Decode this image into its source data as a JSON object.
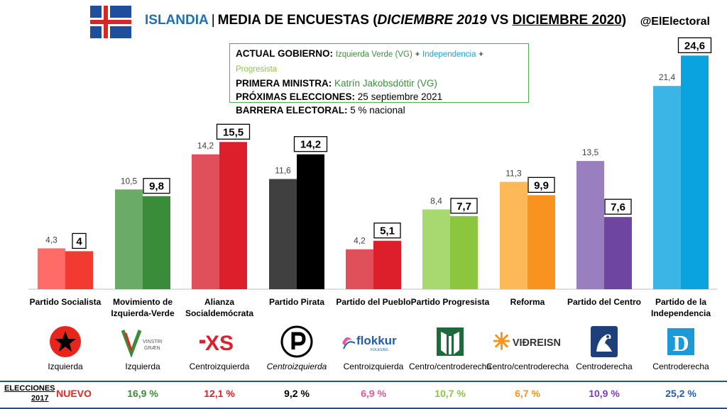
{
  "header": {
    "country": "ISLANDIA",
    "separator": "|",
    "title_main": "MEDIA DE ENCUESTAS (",
    "title_old": "DICIEMBRE 2019",
    "title_vs": " VS ",
    "title_new": "DICIEMBRE 2020",
    "title_close": ")",
    "handle": "@ElElectoral"
  },
  "info": {
    "gov_label": "ACTUAL GOBIERNO:",
    "gov_p1": "Izquierda Verde (VG)",
    "plus": "+",
    "gov_p2": "Independencia",
    "gov_p3": "Progresista",
    "pm_label": "PRIMERA MINISTRA:",
    "pm_value": "Katrín Jakobsdóttir (VG)",
    "next_label": "PRÓXIMAS ELECCIONES:",
    "next_value": "25 septiembre 2021",
    "threshold_label": "BARRERA ELECTORAL:",
    "threshold_value": "5 % nacional"
  },
  "chart_data": {
    "type": "bar",
    "categories": [
      "Partido Socialista",
      "Movimiento de Izquierda-Verde",
      "Alianza Socialdemócrata",
      "Partido Pirata",
      "Partido del Pueblo",
      "Partido Progresista",
      "Reforma",
      "Partido del Centro",
      "Partido de la Independencia"
    ],
    "category_lines": [
      [
        "Partido Socialista"
      ],
      [
        "Movimiento de",
        "Izquierda-Verde"
      ],
      [
        "Alianza",
        "Socialdemócrata"
      ],
      [
        "Partido Pirata"
      ],
      [
        "Partido del Pueblo"
      ],
      [
        "Partido Progresista"
      ],
      [
        "Reforma"
      ],
      [
        "Partido del Centro"
      ],
      [
        "Partido de la",
        "Independencia"
      ]
    ],
    "series": [
      {
        "values": [
          4.3,
          10.5,
          14.2,
          11.6,
          4.2,
          8.4,
          11.3,
          13.5,
          21.4
        ],
        "labels": [
          "4,3",
          "10,5",
          "14,2",
          "11,6",
          "4,2",
          "8,4",
          "11,3",
          "13,5",
          "21,4"
        ]
      },
      {
        "values": [
          4,
          9.8,
          15.5,
          14.2,
          5.1,
          7.7,
          9.9,
          7.6,
          24.6
        ],
        "labels": [
          "4",
          "9,8",
          "15,5",
          "14,2",
          "5,1",
          "7,7",
          "9,9",
          "7,6",
          "24,6"
        ]
      }
    ],
    "colors_2019": [
      "#ff6b66",
      "#6aab68",
      "#e0505a",
      "#404040",
      "#e0505a",
      "#a8d870",
      "#fdb857",
      "#9a7fc0",
      "#3bb5e6"
    ],
    "colors_2020": [
      "#f23a30",
      "#3a8c3a",
      "#dc1f2a",
      "#000000",
      "#dc1f2a",
      "#8cc63f",
      "#f7931e",
      "#6e45a0",
      "#0aa3df"
    ],
    "ylim": [
      0,
      25
    ]
  },
  "parties": [
    {
      "ideology": "Izquierda",
      "logo_text": "",
      "result_2017": "NUEVO",
      "result_color": "#e8251c",
      "logo_icon": "star-icon"
    },
    {
      "ideology": "Izquierda",
      "logo_text": "VINSTRI\nGRÆN",
      "result_2017": "16,9 %",
      "result_color": "#3a8c3a",
      "logo_icon": "vg-logo-icon"
    },
    {
      "ideology": "Centroizquierda",
      "logo_text": "✕S",
      "result_2017": "12,1 %",
      "result_color": "#dc1f2a",
      "logo_icon": "xs-logo-icon"
    },
    {
      "ideology": "Centroizquierda",
      "logo_text": "",
      "result_2017": "9,2 %",
      "result_color": "#000000",
      "logo_icon": "pirate-logo-icon"
    },
    {
      "ideology": "Centroizquierda",
      "logo_text": "flokkur",
      "result_2017": "6,9 %",
      "result_color": "#e8559a",
      "logo_icon": "flokkur-logo-icon"
    },
    {
      "ideology": "Centro/centroderecha",
      "logo_text": "",
      "result_2017": "10,7 %",
      "result_color": "#8cc63f",
      "logo_icon": "progressive-logo-icon"
    },
    {
      "ideology": "Centro/centroderecha",
      "logo_text": "VIÐREISN",
      "result_2017": "6,7 %",
      "result_color": "#f7931e",
      "logo_icon": "vidreisn-logo-icon"
    },
    {
      "ideology": "Centroderecha",
      "logo_text": "",
      "result_2017": "10,9 %",
      "result_color": "#7a3fb0",
      "logo_icon": "centre-logo-icon"
    },
    {
      "ideology": "Centroderecha",
      "logo_text": "D",
      "result_2017": "25,2 %",
      "result_color": "#1f5fae",
      "logo_icon": "d-logo-icon"
    }
  ],
  "results_label": {
    "line1": "ELECCIONES",
    "line2": "2017"
  }
}
